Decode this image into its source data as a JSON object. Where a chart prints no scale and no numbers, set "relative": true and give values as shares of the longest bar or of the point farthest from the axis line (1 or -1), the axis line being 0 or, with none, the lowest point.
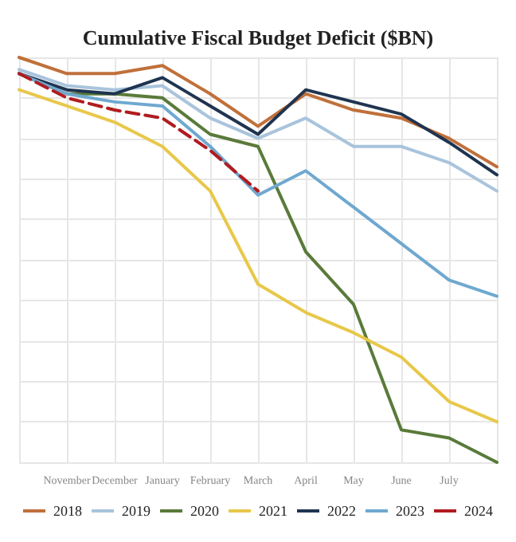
{
  "chart_data": {
    "type": "line",
    "title": "Cumulative Fiscal Budget Deficit ($BN)",
    "relative": true,
    "tick_labels": "x",
    "grid": true,
    "legend": "bottom",
    "marker": "none",
    "categories": [
      null,
      "November",
      "December",
      "January",
      "February",
      "March",
      "April",
      "May",
      "June",
      "July",
      null
    ],
    "series": [
      {
        "name": "2018",
        "color": "#c0703a",
        "values": [
          1.0,
          0.96,
          0.96,
          0.98,
          0.91,
          0.83,
          0.91,
          0.87,
          0.85,
          0.8,
          0.73
        ]
      },
      {
        "name": "2019",
        "color": "#a9c4dc",
        "values": [
          0.97,
          0.93,
          0.92,
          0.93,
          0.85,
          0.8,
          0.85,
          0.78,
          0.78,
          0.74,
          0.67
        ]
      },
      {
        "name": "2020",
        "color": "#5a7a3a",
        "values": [
          0.96,
          0.91,
          0.91,
          0.9,
          0.81,
          0.78,
          0.52,
          0.39,
          0.08,
          0.06,
          0
        ]
      },
      {
        "name": "2021",
        "color": "#e8c84a",
        "values": [
          0.92,
          0.88,
          0.84,
          0.78,
          0.67,
          0.44,
          0.37,
          0.32,
          0.26,
          0.15,
          0.1
        ]
      },
      {
        "name": "2022",
        "color": "#1f3450",
        "values": [
          0.96,
          0.92,
          0.91,
          0.95,
          0.88,
          0.81,
          0.92,
          0.89,
          0.86,
          0.79,
          0.71
        ]
      },
      {
        "name": "2023",
        "color": "#6fa8d0",
        "values": [
          0.96,
          0.91,
          0.89,
          0.88,
          0.78,
          0.66,
          0.72,
          0.63,
          0.54,
          0.45,
          0.41
        ]
      },
      {
        "name": "2024",
        "color": "#b01c20",
        "line_style": "dashed",
        "values": [
          0.96,
          0.9,
          0.87,
          0.85,
          0.77,
          0.67,
          null,
          null,
          null,
          null,
          null
        ]
      }
    ]
  }
}
